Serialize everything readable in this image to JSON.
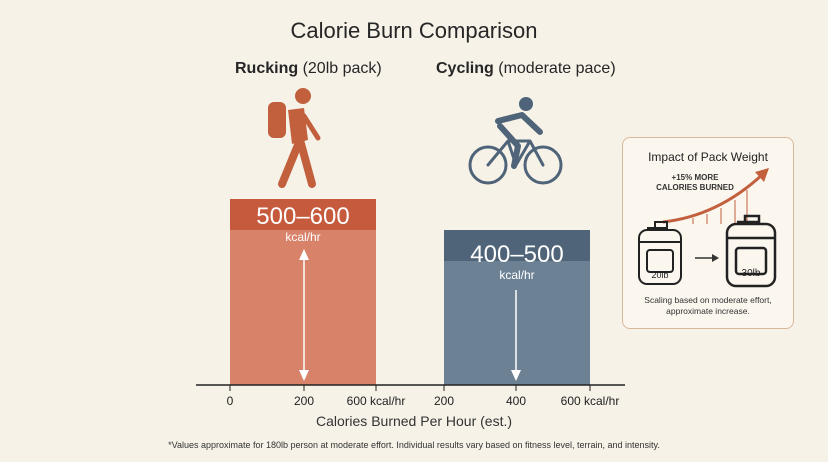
{
  "chart_data": {
    "type": "bar",
    "title": "Calorie Burn Comparison",
    "xlabel": "Calories Burned Per Hour (est.)",
    "series": [
      {
        "name": "Rucking",
        "qualifier": "(20lb pack)",
        "range_low": 500,
        "range_high": 600,
        "range_label": "500–600",
        "unit": "kcal/hr",
        "color_top": "#c65a3c",
        "color_body": "#d8826a",
        "x_ticks": [
          "0",
          "200",
          "600 kcal/hr"
        ]
      },
      {
        "name": "Cycling",
        "qualifier": "(moderate pace)",
        "range_low": 400,
        "range_high": 500,
        "range_label": "400–500",
        "unit": "kcal/hr",
        "color_top": "#4f6479",
        "color_body": "#6d8195",
        "x_ticks": [
          "200",
          "400",
          "600 kcal/hr"
        ]
      }
    ],
    "footnote": "*Values approximate for 180lb person at moderate effort. Individual results vary based on fitness level, terrain, and intensity."
  },
  "inset": {
    "title": "Impact of Pack Weight",
    "increase_line1": "+15% MORE",
    "increase_line2": "CALORIES BURNED",
    "pack_from": "20lb",
    "pack_to": "30lb",
    "note_line1": "Scaling based on moderate effort,",
    "note_line2": "approximate increase.",
    "accent": "#c2603d"
  },
  "icons": {
    "rucking": "hiker-with-backpack-icon",
    "cycling": "cyclist-icon"
  }
}
